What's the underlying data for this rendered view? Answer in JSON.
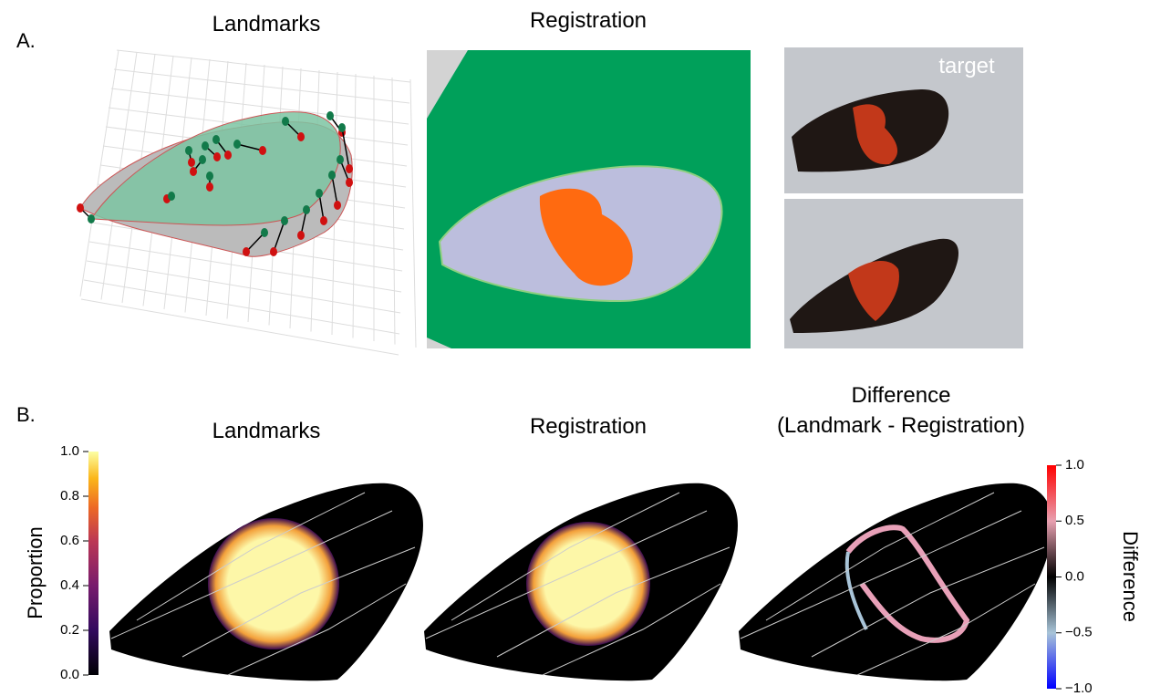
{
  "panel_a": {
    "label": "A.",
    "landmarks_title": "Landmarks",
    "registration_title": "Registration",
    "target_label": "target"
  },
  "panel_b": {
    "label": "B.",
    "landmarks_title": "Landmarks",
    "registration_title": "Registration",
    "difference_title": [
      "Difference",
      "(Landmark - Registration)"
    ],
    "proportion_colorbar": {
      "label": "Proportion",
      "range": [
        0,
        1
      ],
      "ticks": [
        {
          "value": 0,
          "label": "0.0"
        },
        {
          "value": 0.2,
          "label": "0.2"
        },
        {
          "value": 0.4,
          "label": "0.4"
        },
        {
          "value": 0.6,
          "label": "0.6"
        },
        {
          "value": 0.8,
          "label": "0.8"
        },
        {
          "value": 1,
          "label": "1.0"
        }
      ]
    },
    "difference_colorbar": {
      "label": "Difference",
      "range": [
        -1,
        1
      ],
      "ticks": [
        {
          "value": -1,
          "label": "−1.0"
        },
        {
          "value": -0.5,
          "label": "−0.5"
        },
        {
          "value": 0,
          "label": "0.0"
        },
        {
          "value": 0.5,
          "label": "0.5"
        },
        {
          "value": 1,
          "label": "1.0"
        }
      ]
    }
  }
}
